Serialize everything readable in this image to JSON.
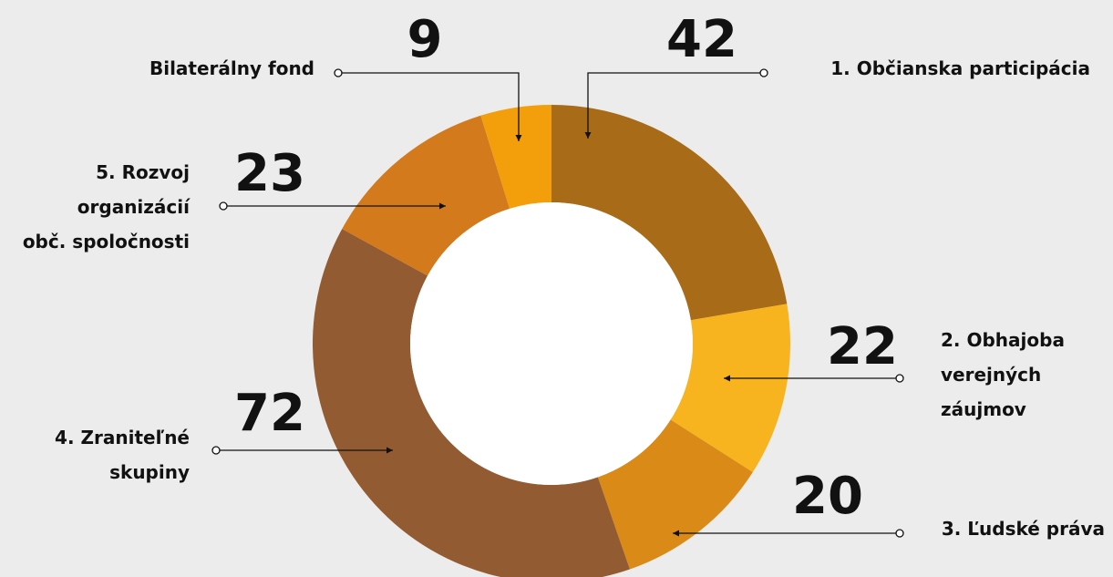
{
  "chart_data": {
    "type": "pie",
    "donut": true,
    "categories": [
      "1. Občianska participácia",
      "2. Obhajoba verejných záujmov",
      "3. Ľudské práva",
      "4. Zraniteľné skupiny",
      "5. Rozvoj organizácií obč. spoločnosti",
      "Bilaterálny fond"
    ],
    "values": [
      42,
      22,
      20,
      72,
      23,
      9
    ],
    "colors": [
      "#a86b17",
      "#f8b41e",
      "#da8a16",
      "#935b32",
      "#d27a1c",
      "#f39f0c"
    ],
    "labels": [
      {
        "lines": [
          "1. Občianska participácia"
        ]
      },
      {
        "lines": [
          "2. Obhajoba",
          "verejných",
          "záujmov"
        ]
      },
      {
        "lines": [
          "3. Ľudské práva"
        ]
      },
      {
        "lines": [
          "4. Zraniteľné",
          "skupiny"
        ]
      },
      {
        "lines": [
          "5. Rozvoj",
          "organizácií",
          "obč. spoločnosti"
        ]
      },
      {
        "lines": [
          "Bilaterálny fond"
        ]
      }
    ],
    "title": "",
    "legend": "none"
  }
}
